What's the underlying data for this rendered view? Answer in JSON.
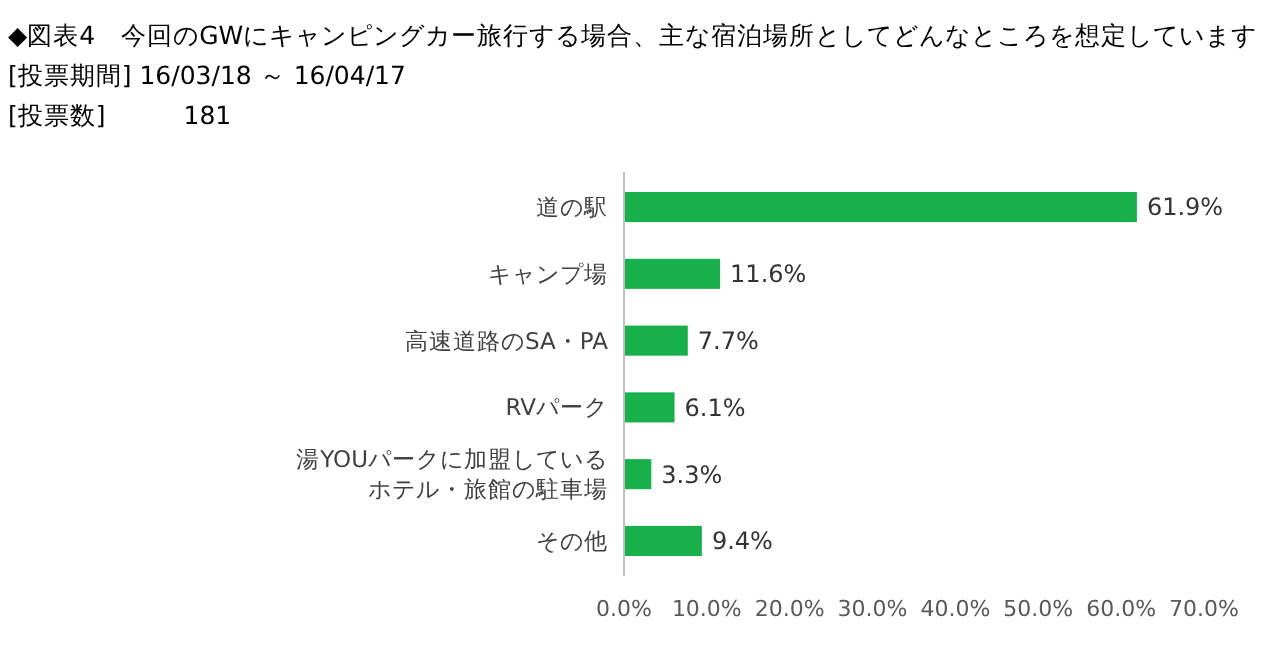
{
  "chart_data": {
    "type": "bar",
    "orientation": "horizontal",
    "title": "◆図表4　今回のGWにキャンピングカー旅行する場合、主な宿泊場所としてどんなところを想定しています",
    "subtitle": "[投票期間] 16/03/18 ～ 16/04/17",
    "annotations": [
      "[投票数]　　　181"
    ],
    "categories": [
      "道の駅",
      "キャンプ場",
      "高速道路のSA・PA",
      "RVパーク",
      "湯YOUパークに加盟しているホテル・旅館の駐車場",
      "その他"
    ],
    "values": [
      61.9,
      11.6,
      7.7,
      6.1,
      3.3,
      9.4
    ],
    "value_labels": [
      "61.9%",
      "11.6%",
      "7.7%",
      "6.1%",
      "3.3%",
      "9.4%"
    ],
    "color": "#17b04b",
    "xlim": [
      0,
      70
    ],
    "xticks": [
      {
        "value": 0,
        "label": "0.0%"
      },
      {
        "value": 10,
        "label": "10.0%"
      },
      {
        "value": 20,
        "label": "20.0%"
      },
      {
        "value": 30,
        "label": "30.0%"
      },
      {
        "value": 40,
        "label": "40.0%"
      },
      {
        "value": 50,
        "label": "50.0%"
      },
      {
        "value": 60,
        "label": "60.0%"
      },
      {
        "value": 70,
        "label": "70.0%"
      }
    ],
    "grid": false
  }
}
